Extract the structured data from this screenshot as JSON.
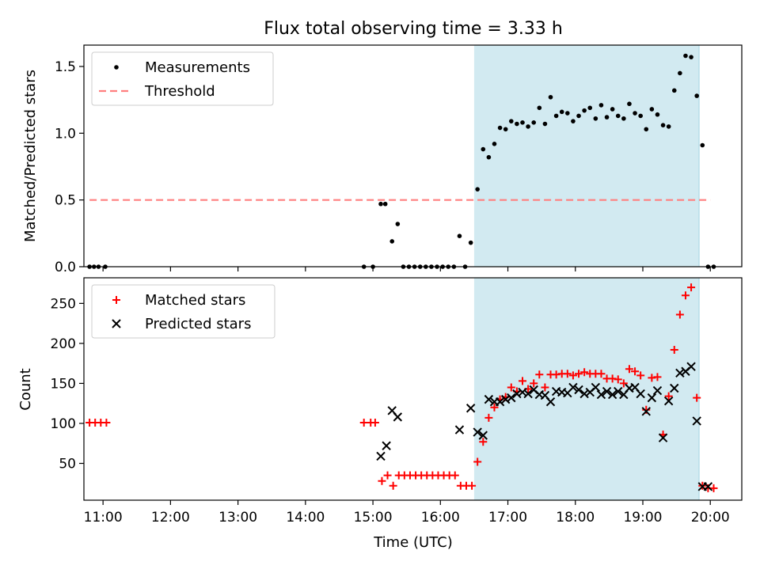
{
  "figure_title": "Flux total observing time = 3.33 h",
  "xlabel": "Time (UTC)",
  "x_ticks": [
    "11:00",
    "12:00",
    "13:00",
    "14:00",
    "15:00",
    "16:00",
    "17:00",
    "18:00",
    "19:00",
    "20:00"
  ],
  "colors": {
    "measurement": "#000000",
    "threshold": "#ff7f7f",
    "matched": "#ff0000",
    "predicted": "#000000",
    "shade": "#add8e6"
  },
  "chart_data": [
    {
      "type": "scatter",
      "ylabel": "Matched/Predicted stars",
      "xlim": [
        "10:43",
        "20:28"
      ],
      "ylim": [
        0,
        1.66
      ],
      "y_ticks": [
        "0.0",
        "0.5",
        "1.0",
        "1.5"
      ],
      "legend": {
        "placement": "top-left",
        "entries": [
          "Measurements",
          "Threshold"
        ]
      },
      "shaded_region": {
        "x_start": "16:30",
        "x_end": "19:50"
      },
      "threshold": {
        "name": "Threshold",
        "x_start": "10:48",
        "x_end": "20:00",
        "y": 0.5
      },
      "series": [
        {
          "name": "Measurements",
          "marker": "dot",
          "points": [
            [
              "10:48",
              0
            ],
            [
              "10:52",
              0
            ],
            [
              "10:56",
              0
            ],
            [
              "11:02",
              0
            ],
            [
              "14:52",
              0
            ],
            [
              "15:00",
              0
            ],
            [
              "15:07",
              0.47
            ],
            [
              "15:11",
              0.47
            ],
            [
              "15:17",
              0.19
            ],
            [
              "15:22",
              0.32
            ],
            [
              "15:27",
              0
            ],
            [
              "15:32",
              0
            ],
            [
              "15:37",
              0
            ],
            [
              "15:42",
              0
            ],
            [
              "15:47",
              0
            ],
            [
              "15:52",
              0
            ],
            [
              "15:57",
              0
            ],
            [
              "16:02",
              0
            ],
            [
              "16:07",
              0
            ],
            [
              "16:12",
              0
            ],
            [
              "16:17",
              0.23
            ],
            [
              "16:22",
              0
            ],
            [
              "16:27",
              0.18
            ],
            [
              "16:33",
              0.58
            ],
            [
              "16:38",
              0.88
            ],
            [
              "16:43",
              0.82
            ],
            [
              "16:48",
              0.92
            ],
            [
              "16:53",
              1.04
            ],
            [
              "16:58",
              1.03
            ],
            [
              "17:03",
              1.09
            ],
            [
              "17:08",
              1.07
            ],
            [
              "17:13",
              1.08
            ],
            [
              "17:18",
              1.05
            ],
            [
              "17:23",
              1.08
            ],
            [
              "17:28",
              1.19
            ],
            [
              "17:33",
              1.07
            ],
            [
              "17:38",
              1.27
            ],
            [
              "17:43",
              1.13
            ],
            [
              "17:48",
              1.16
            ],
            [
              "17:53",
              1.15
            ],
            [
              "17:58",
              1.09
            ],
            [
              "18:03",
              1.13
            ],
            [
              "18:08",
              1.17
            ],
            [
              "18:13",
              1.19
            ],
            [
              "18:18",
              1.11
            ],
            [
              "18:23",
              1.21
            ],
            [
              "18:28",
              1.12
            ],
            [
              "18:33",
              1.18
            ],
            [
              "18:38",
              1.13
            ],
            [
              "18:43",
              1.11
            ],
            [
              "18:48",
              1.22
            ],
            [
              "18:53",
              1.15
            ],
            [
              "18:58",
              1.13
            ],
            [
              "19:03",
              1.03
            ],
            [
              "19:08",
              1.18
            ],
            [
              "19:13",
              1.14
            ],
            [
              "19:18",
              1.06
            ],
            [
              "19:23",
              1.05
            ],
            [
              "19:28",
              1.32
            ],
            [
              "19:33",
              1.45
            ],
            [
              "19:38",
              1.58
            ],
            [
              "19:43",
              1.57
            ],
            [
              "19:48",
              1.28
            ],
            [
              "19:53",
              0.91
            ],
            [
              "19:58",
              0
            ],
            [
              "20:03",
              0
            ]
          ]
        }
      ]
    },
    {
      "type": "scatter",
      "ylabel": "Count",
      "xlim": [
        "10:43",
        "20:28"
      ],
      "ylim": [
        4,
        282
      ],
      "y_ticks": [
        "50",
        "100",
        "150",
        "200",
        "250"
      ],
      "legend": {
        "placement": "top-left",
        "entries": [
          "Matched stars",
          "Predicted stars"
        ]
      },
      "shaded_region": {
        "x_start": "16:30",
        "x_end": "19:50"
      },
      "series": [
        {
          "name": "Matched stars",
          "marker": "plus",
          "points": [
            [
              "10:48",
              101
            ],
            [
              "10:53",
              101
            ],
            [
              "10:58",
              101
            ],
            [
              "11:03",
              101
            ],
            [
              "14:52",
              101
            ],
            [
              "14:58",
              101
            ],
            [
              "15:02",
              101
            ],
            [
              "15:08",
              28
            ],
            [
              "15:13",
              35
            ],
            [
              "15:18",
              22
            ],
            [
              "15:23",
              35
            ],
            [
              "15:28",
              35
            ],
            [
              "15:33",
              35
            ],
            [
              "15:38",
              35
            ],
            [
              "15:43",
              35
            ],
            [
              "15:48",
              35
            ],
            [
              "15:53",
              35
            ],
            [
              "15:58",
              35
            ],
            [
              "16:03",
              35
            ],
            [
              "16:08",
              35
            ],
            [
              "16:13",
              35
            ],
            [
              "16:18",
              22
            ],
            [
              "16:23",
              22
            ],
            [
              "16:28",
              22
            ],
            [
              "16:33",
              52
            ],
            [
              "16:38",
              77
            ],
            [
              "16:43",
              107
            ],
            [
              "16:48",
              120
            ],
            [
              "16:53",
              130
            ],
            [
              "16:58",
              133
            ],
            [
              "17:03",
              145
            ],
            [
              "17:08",
              140
            ],
            [
              "17:13",
              153
            ],
            [
              "17:18",
              143
            ],
            [
              "17:23",
              150
            ],
            [
              "17:28",
              161
            ],
            [
              "17:33",
              145
            ],
            [
              "17:38",
              161
            ],
            [
              "17:43",
              161
            ],
            [
              "17:48",
              162
            ],
            [
              "17:53",
              162
            ],
            [
              "17:58",
              160
            ],
            [
              "18:03",
              162
            ],
            [
              "18:08",
              164
            ],
            [
              "18:13",
              162
            ],
            [
              "18:18",
              162
            ],
            [
              "18:23",
              162
            ],
            [
              "18:28",
              156
            ],
            [
              "18:33",
              156
            ],
            [
              "18:38",
              155
            ],
            [
              "18:43",
              150
            ],
            [
              "18:48",
              168
            ],
            [
              "18:53",
              165
            ],
            [
              "18:58",
              160
            ],
            [
              "19:03",
              117
            ],
            [
              "19:08",
              157
            ],
            [
              "19:13",
              158
            ],
            [
              "19:18",
              86
            ],
            [
              "19:23",
              134
            ],
            [
              "19:28",
              192
            ],
            [
              "19:33",
              236
            ],
            [
              "19:38",
              260
            ],
            [
              "19:43",
              270
            ],
            [
              "19:48",
              132
            ],
            [
              "19:53",
              22
            ],
            [
              "19:58",
              19
            ],
            [
              "20:03",
              19
            ]
          ]
        },
        {
          "name": "Predicted stars",
          "marker": "cross",
          "points": [
            [
              "15:07",
              59
            ],
            [
              "15:12",
              72
            ],
            [
              "15:17",
              116
            ],
            [
              "15:22",
              108
            ],
            [
              "16:17",
              92
            ],
            [
              "16:27",
              119
            ],
            [
              "16:33",
              89
            ],
            [
              "16:38",
              85
            ],
            [
              "16:43",
              130
            ],
            [
              "16:48",
              127
            ],
            [
              "16:53",
              127
            ],
            [
              "16:58",
              130
            ],
            [
              "17:03",
              132
            ],
            [
              "17:08",
              137
            ],
            [
              "17:13",
              139
            ],
            [
              "17:18",
              137
            ],
            [
              "17:23",
              142
            ],
            [
              "17:28",
              136
            ],
            [
              "17:33",
              135
            ],
            [
              "17:38",
              127
            ],
            [
              "17:43",
              140
            ],
            [
              "17:48",
              139
            ],
            [
              "17:53",
              138
            ],
            [
              "17:58",
              145
            ],
            [
              "18:03",
              142
            ],
            [
              "18:08",
              137
            ],
            [
              "18:13",
              139
            ],
            [
              "18:18",
              145
            ],
            [
              "18:23",
              136
            ],
            [
              "18:28",
              140
            ],
            [
              "18:33",
              136
            ],
            [
              "18:38",
              140
            ],
            [
              "18:43",
              136
            ],
            [
              "18:48",
              144
            ],
            [
              "18:53",
              145
            ],
            [
              "18:58",
              137
            ],
            [
              "19:03",
              115
            ],
            [
              "19:08",
              132
            ],
            [
              "19:13",
              141
            ],
            [
              "19:18",
              82
            ],
            [
              "19:23",
              128
            ],
            [
              "19:28",
              144
            ],
            [
              "19:33",
              163
            ],
            [
              "19:38",
              165
            ],
            [
              "19:43",
              171
            ],
            [
              "19:48",
              103
            ],
            [
              "19:53",
              21
            ],
            [
              "19:58",
              21
            ]
          ]
        }
      ]
    }
  ]
}
